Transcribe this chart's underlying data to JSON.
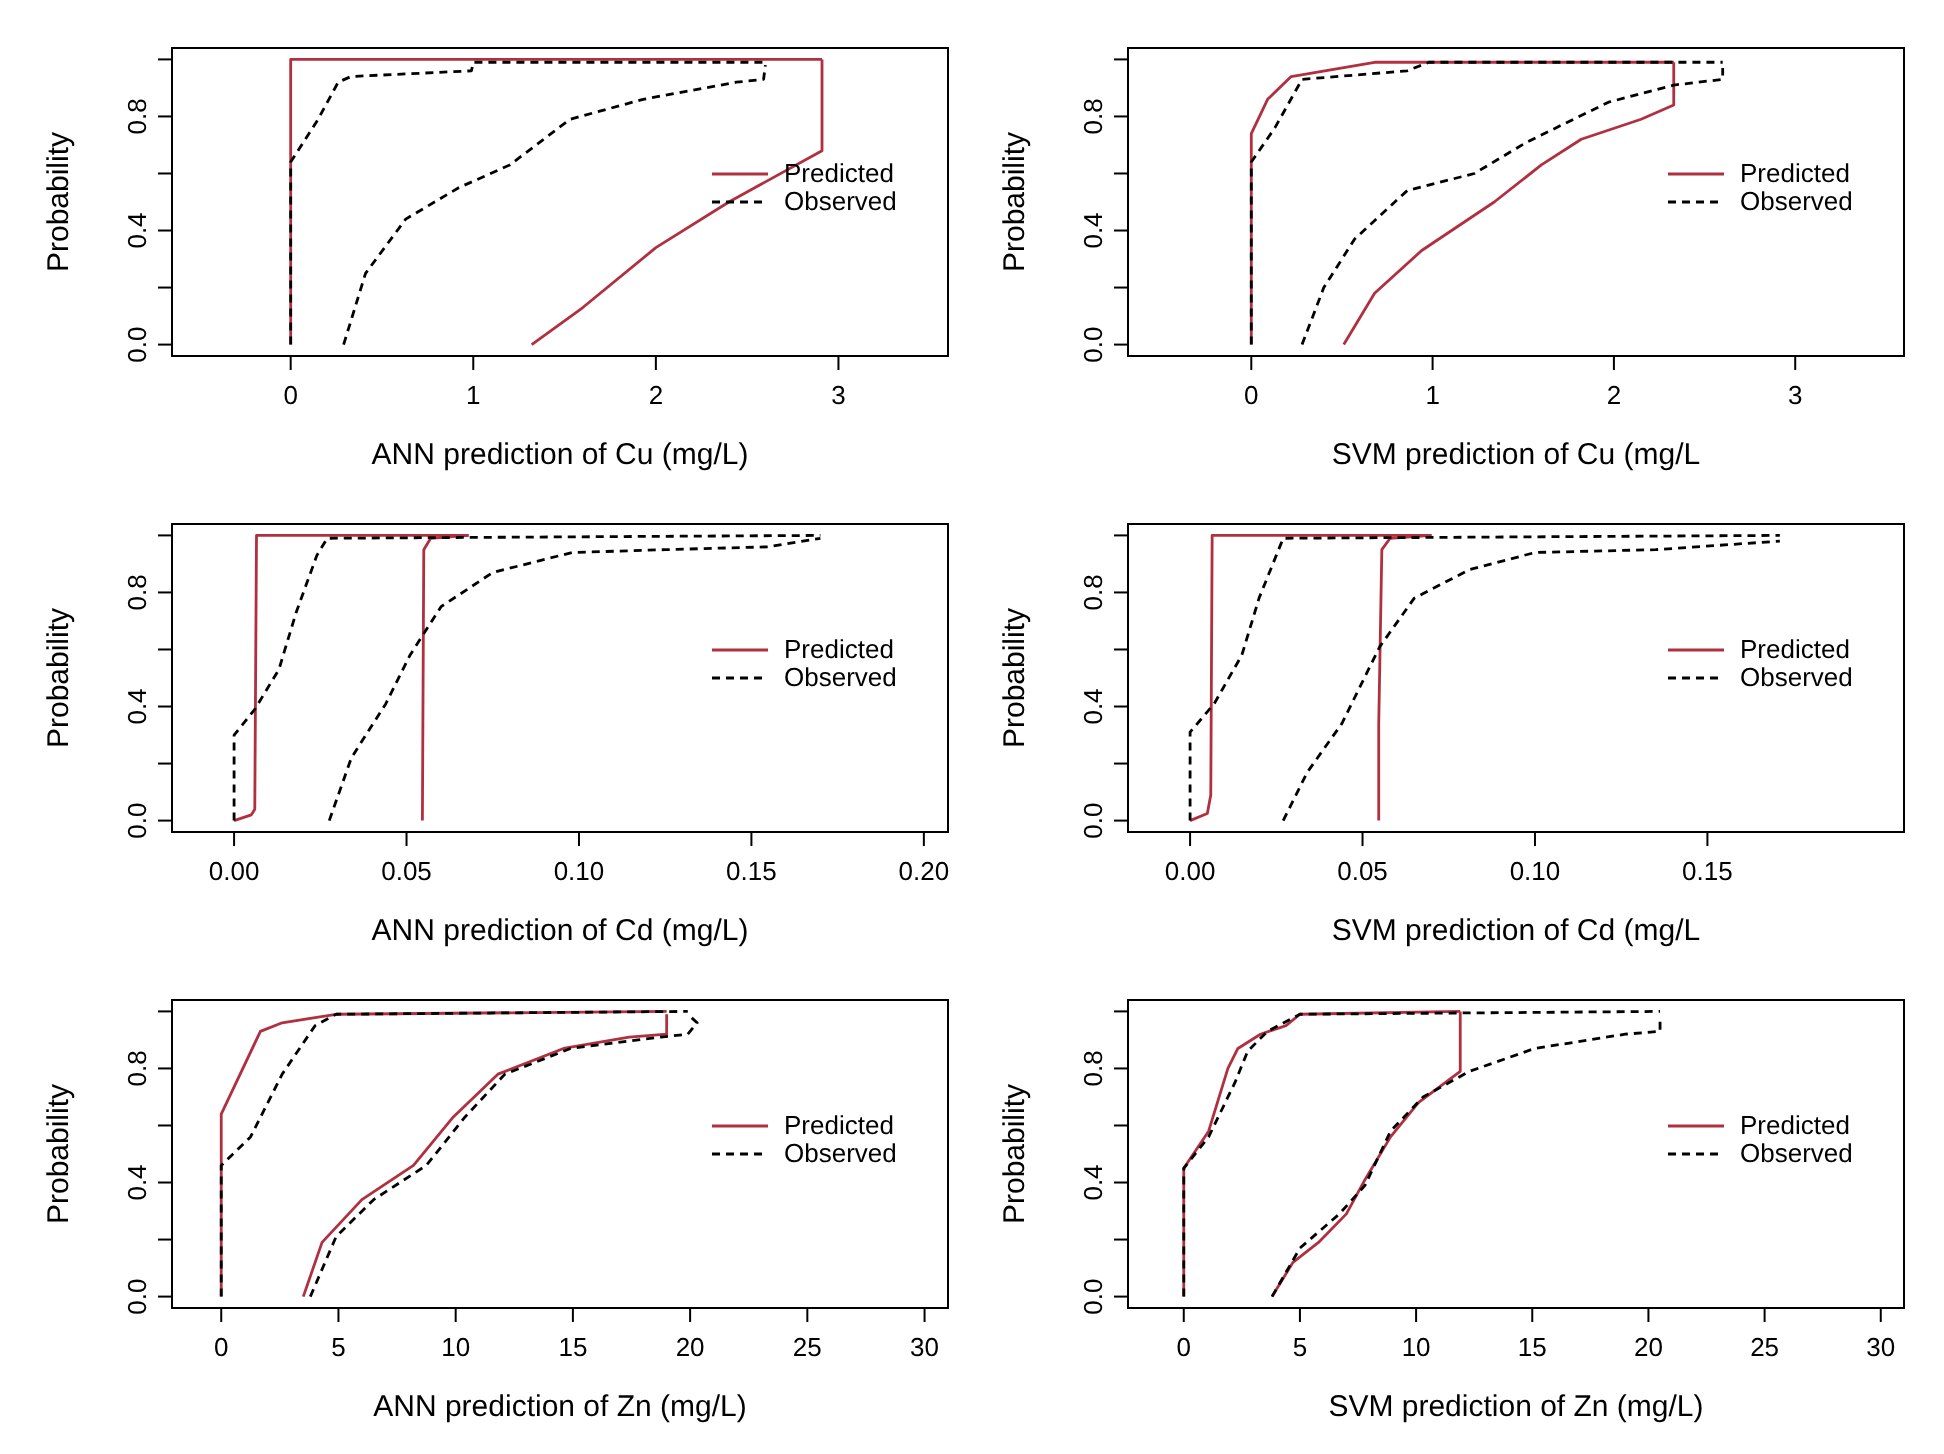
{
  "chart_data": [
    {
      "type": "line",
      "xlabel": "ANN prediction of Cu (mg/L)",
      "ylabel": "Probability",
      "xlim": [
        -0.65,
        3.6
      ],
      "xticks": [
        0,
        1,
        2,
        3
      ],
      "ylim": [
        -0.04,
        1.04
      ],
      "yticks": [
        {
          "value": 0,
          "label": "0.0"
        },
        {
          "value": 0.2,
          "label": null
        },
        {
          "value": 0.4,
          "label": "0.4"
        },
        {
          "value": 0.6,
          "label": null
        },
        {
          "value": 0.8,
          "label": "0.8"
        },
        {
          "value": 1,
          "label": null
        }
      ],
      "legend": "right",
      "series": [
        {
          "name": "Predicted",
          "color": "#b03040",
          "line_style": "solid",
          "x": [
            0,
            0,
            2.91
          ],
          "values": [
            0,
            1,
            1
          ]
        },
        {
          "color": "#b03040",
          "line_style": "solid",
          "x": [
            1.32,
            1.6,
            2.0,
            2.4,
            2.91,
            2.91
          ],
          "values": [
            0,
            0.13,
            0.34,
            0.5,
            0.68,
            1
          ]
        },
        {
          "name": "Observed",
          "color": "#000000",
          "line_style": "dashed",
          "x": [
            0,
            0,
            0.15,
            0.26,
            0.33,
            0.99,
            1.0,
            2.6
          ],
          "values": [
            0,
            0.64,
            0.79,
            0.92,
            0.94,
            0.96,
            0.99,
            0.99
          ]
        },
        {
          "color": "#000000",
          "line_style": "dashed",
          "x": [
            0.29,
            0.41,
            0.63,
            0.92,
            1.2,
            1.53,
            1.93,
            2.44,
            2.59,
            2.6
          ],
          "values": [
            0,
            0.25,
            0.44,
            0.55,
            0.63,
            0.79,
            0.86,
            0.92,
            0.93,
            0.98
          ]
        }
      ]
    },
    {
      "type": "line",
      "xlabel": "SVM prediction of Cu (mg/L",
      "ylabel": "Probability",
      "xlim": [
        -0.68,
        3.6
      ],
      "xticks": [
        0,
        1,
        2,
        3
      ],
      "ylim": [
        -0.04,
        1.04
      ],
      "yticks": [
        {
          "value": 0,
          "label": "0.0"
        },
        {
          "value": 0.2,
          "label": null
        },
        {
          "value": 0.4,
          "label": "0.4"
        },
        {
          "value": 0.6,
          "label": null
        },
        {
          "value": 0.8,
          "label": "0.8"
        },
        {
          "value": 1,
          "label": null
        }
      ],
      "legend": "right",
      "series": [
        {
          "name": "Predicted",
          "color": "#b03040",
          "line_style": "solid",
          "x": [
            0,
            0,
            0.09,
            0.22,
            0.68,
            2.33
          ],
          "values": [
            0,
            0.74,
            0.86,
            0.94,
            0.99,
            0.99
          ]
        },
        {
          "color": "#b03040",
          "line_style": "solid",
          "x": [
            0.51,
            0.68,
            0.94,
            1.34,
            1.6,
            1.82,
            2.15,
            2.33,
            2.33
          ],
          "values": [
            0,
            0.18,
            0.33,
            0.5,
            0.63,
            0.72,
            0.79,
            0.84,
            0.99
          ]
        },
        {
          "name": "Observed",
          "color": "#000000",
          "line_style": "dashed",
          "x": [
            0,
            0,
            0.13,
            0.28,
            0.86,
            0.98,
            2.6
          ],
          "values": [
            0,
            0.64,
            0.76,
            0.93,
            0.96,
            0.99,
            0.99
          ]
        },
        {
          "color": "#000000",
          "line_style": "dashed",
          "x": [
            0.28,
            0.4,
            0.57,
            0.86,
            1.23,
            1.52,
            1.97,
            2.33,
            2.6,
            2.6
          ],
          "values": [
            0,
            0.2,
            0.37,
            0.54,
            0.6,
            0.71,
            0.85,
            0.91,
            0.93,
            0.97
          ]
        }
      ]
    },
    {
      "type": "line",
      "xlabel": "ANN prediction of Cd (mg/L)",
      "ylabel": "Probability",
      "xlim": [
        -0.018,
        0.207
      ],
      "xticks": [
        {
          "value": 0,
          "label": "0.00"
        },
        {
          "value": 0.05,
          "label": "0.05"
        },
        {
          "value": 0.1,
          "label": "0.10"
        },
        {
          "value": 0.15,
          "label": "0.15"
        },
        {
          "value": 0.2,
          "label": "0.20"
        }
      ],
      "ylim": [
        -0.04,
        1.04
      ],
      "yticks": [
        {
          "value": 0,
          "label": "0.0"
        },
        {
          "value": 0.2,
          "label": null
        },
        {
          "value": 0.4,
          "label": "0.4"
        },
        {
          "value": 0.6,
          "label": null
        },
        {
          "value": 0.8,
          "label": "0.8"
        },
        {
          "value": 1,
          "label": null
        }
      ],
      "legend": "right",
      "series": [
        {
          "name": "Predicted",
          "color": "#b03040",
          "line_style": "solid",
          "x": [
            0,
            0.005,
            0.006,
            0.0065,
            0.068
          ],
          "values": [
            0,
            0.02,
            0.04,
            1,
            1
          ]
        },
        {
          "color": "#b03040",
          "line_style": "solid",
          "x": [
            0.0546,
            0.055,
            0.057,
            0.068
          ],
          "values": [
            0,
            0.95,
            0.99,
            1
          ]
        },
        {
          "name": "Observed",
          "color": "#000000",
          "line_style": "dashed",
          "x": [
            0,
            0,
            0.006,
            0.013,
            0.018,
            0.024,
            0.027,
            0.17
          ],
          "values": [
            0,
            0.3,
            0.39,
            0.53,
            0.73,
            0.93,
            0.99,
            1
          ]
        },
        {
          "color": "#000000",
          "line_style": "dashed",
          "x": [
            0.0276,
            0.034,
            0.044,
            0.051,
            0.06,
            0.075,
            0.098,
            0.125,
            0.155,
            0.17
          ],
          "values": [
            0,
            0.22,
            0.41,
            0.58,
            0.75,
            0.87,
            0.94,
            0.95,
            0.96,
            0.99
          ]
        }
      ]
    },
    {
      "type": "line",
      "xlabel": "SVM prediction of Cd (mg/L",
      "ylabel": "Probability",
      "xlim": [
        -0.018,
        0.207
      ],
      "xticks": [
        {
          "value": 0,
          "label": "0.00"
        },
        {
          "value": 0.05,
          "label": "0.05"
        },
        {
          "value": 0.1,
          "label": "0.10"
        },
        {
          "value": 0.15,
          "label": "0.15"
        }
      ],
      "ylim": [
        -0.04,
        1.04
      ],
      "yticks": [
        {
          "value": 0,
          "label": "0.0"
        },
        {
          "value": 0.2,
          "label": null
        },
        {
          "value": 0.4,
          "label": "0.4"
        },
        {
          "value": 0.6,
          "label": null
        },
        {
          "value": 0.8,
          "label": "0.8"
        },
        {
          "value": 1,
          "label": null
        }
      ],
      "legend": "right",
      "series": [
        {
          "name": "Predicted",
          "color": "#b03040",
          "line_style": "solid",
          "x": [
            0,
            0.005,
            0.006,
            0.0064,
            0.07
          ],
          "values": [
            0,
            0.025,
            0.09,
            1,
            1
          ]
        },
        {
          "color": "#b03040",
          "line_style": "solid",
          "x": [
            0.0547,
            0.0547,
            0.0556,
            0.058,
            0.07
          ],
          "values": [
            0,
            0.34,
            0.95,
            0.99,
            1
          ]
        },
        {
          "name": "Observed",
          "color": "#000000",
          "line_style": "dashed",
          "x": [
            0,
            0,
            0.007,
            0.015,
            0.02,
            0.025,
            0.027,
            0.171
          ],
          "values": [
            0,
            0.31,
            0.41,
            0.58,
            0.78,
            0.93,
            0.99,
            1
          ]
        },
        {
          "color": "#000000",
          "line_style": "dashed",
          "x": [
            0.027,
            0.034,
            0.044,
            0.055,
            0.065,
            0.081,
            0.1,
            0.135,
            0.171
          ],
          "values": [
            0,
            0.17,
            0.34,
            0.61,
            0.78,
            0.88,
            0.94,
            0.95,
            0.98
          ]
        }
      ]
    },
    {
      "type": "line",
      "xlabel": "ANN prediction of Zn (mg/L)",
      "ylabel": "Probability",
      "xlim": [
        -2.1,
        31
      ],
      "xticks": [
        0,
        5,
        10,
        15,
        20,
        25,
        30
      ],
      "ylim": [
        -0.04,
        1.04
      ],
      "yticks": [
        {
          "value": 0,
          "label": "0.0"
        },
        {
          "value": 0.2,
          "label": null
        },
        {
          "value": 0.4,
          "label": "0.4"
        },
        {
          "value": 0.6,
          "label": null
        },
        {
          "value": 0.8,
          "label": "0.8"
        },
        {
          "value": 1,
          "label": null
        }
      ],
      "legend": "right",
      "series": [
        {
          "name": "Predicted",
          "color": "#b03040",
          "line_style": "solid",
          "x": [
            0,
            0,
            1.67,
            2.6,
            4.9,
            19
          ],
          "values": [
            0,
            0.64,
            0.93,
            0.96,
            0.99,
            1
          ]
        },
        {
          "color": "#b03040",
          "line_style": "solid",
          "x": [
            3.5,
            4.3,
            6,
            8.2,
            9.9,
            11.8,
            14.6,
            17.4,
            19,
            19
          ],
          "values": [
            0,
            0.19,
            0.34,
            0.46,
            0.63,
            0.78,
            0.87,
            0.91,
            0.92,
            0.99
          ]
        },
        {
          "name": "Observed",
          "color": "#000000",
          "line_style": "dashed",
          "x": [
            0,
            0,
            1.25,
            2.6,
            4,
            4.9,
            19.9
          ],
          "values": [
            0,
            0.46,
            0.56,
            0.78,
            0.95,
            0.99,
            1
          ]
        },
        {
          "color": "#000000",
          "line_style": "dashed",
          "x": [
            3.8,
            4.9,
            6.5,
            8.75,
            10.4,
            12.1,
            14.9,
            18.75,
            19.9,
            20.3,
            19.9
          ],
          "values": [
            0,
            0.21,
            0.34,
            0.46,
            0.63,
            0.78,
            0.87,
            0.91,
            0.92,
            0.96,
            0.99
          ]
        }
      ]
    },
    {
      "type": "line",
      "xlabel": "SVM prediction of Zn (mg/L)",
      "ylabel": "Probability",
      "xlim": [
        -2.4,
        31
      ],
      "xticks": [
        0,
        5,
        10,
        15,
        20,
        25,
        30
      ],
      "ylim": [
        -0.04,
        1.04
      ],
      "yticks": [
        {
          "value": 0,
          "label": "0.0"
        },
        {
          "value": 0.2,
          "label": null
        },
        {
          "value": 0.4,
          "label": "0.4"
        },
        {
          "value": 0.6,
          "label": null
        },
        {
          "value": 0.8,
          "label": "0.8"
        },
        {
          "value": 1,
          "label": null
        }
      ],
      "legend": "right",
      "series": [
        {
          "name": "Predicted",
          "color": "#b03040",
          "line_style": "solid",
          "x": [
            0,
            0,
            1.07,
            1.9,
            2.33,
            3.3,
            4.4,
            5,
            11.9
          ],
          "values": [
            0,
            0.45,
            0.58,
            0.8,
            0.87,
            0.92,
            0.95,
            0.99,
            1
          ]
        },
        {
          "color": "#b03040",
          "line_style": "solid",
          "x": [
            3.8,
            4.7,
            5.8,
            7,
            7.8,
            8.9,
            10.1,
            11.9,
            11.9
          ],
          "values": [
            0,
            0.12,
            0.19,
            0.29,
            0.41,
            0.56,
            0.68,
            0.79,
            1
          ]
        },
        {
          "name": "Observed",
          "color": "#000000",
          "line_style": "dashed",
          "x": [
            0,
            0,
            1.07,
            2.2,
            2.75,
            3.6,
            5,
            20.5
          ],
          "values": [
            0,
            0.45,
            0.56,
            0.75,
            0.86,
            0.93,
            0.99,
            1
          ]
        },
        {
          "color": "#000000",
          "line_style": "dashed",
          "x": [
            3.8,
            5,
            6.7,
            7.8,
            8.9,
            10.3,
            12.3,
            15.1,
            19,
            20.5,
            20.5
          ],
          "values": [
            0,
            0.17,
            0.29,
            0.39,
            0.58,
            0.7,
            0.79,
            0.87,
            0.92,
            0.93,
            0.98
          ]
        }
      ]
    }
  ]
}
